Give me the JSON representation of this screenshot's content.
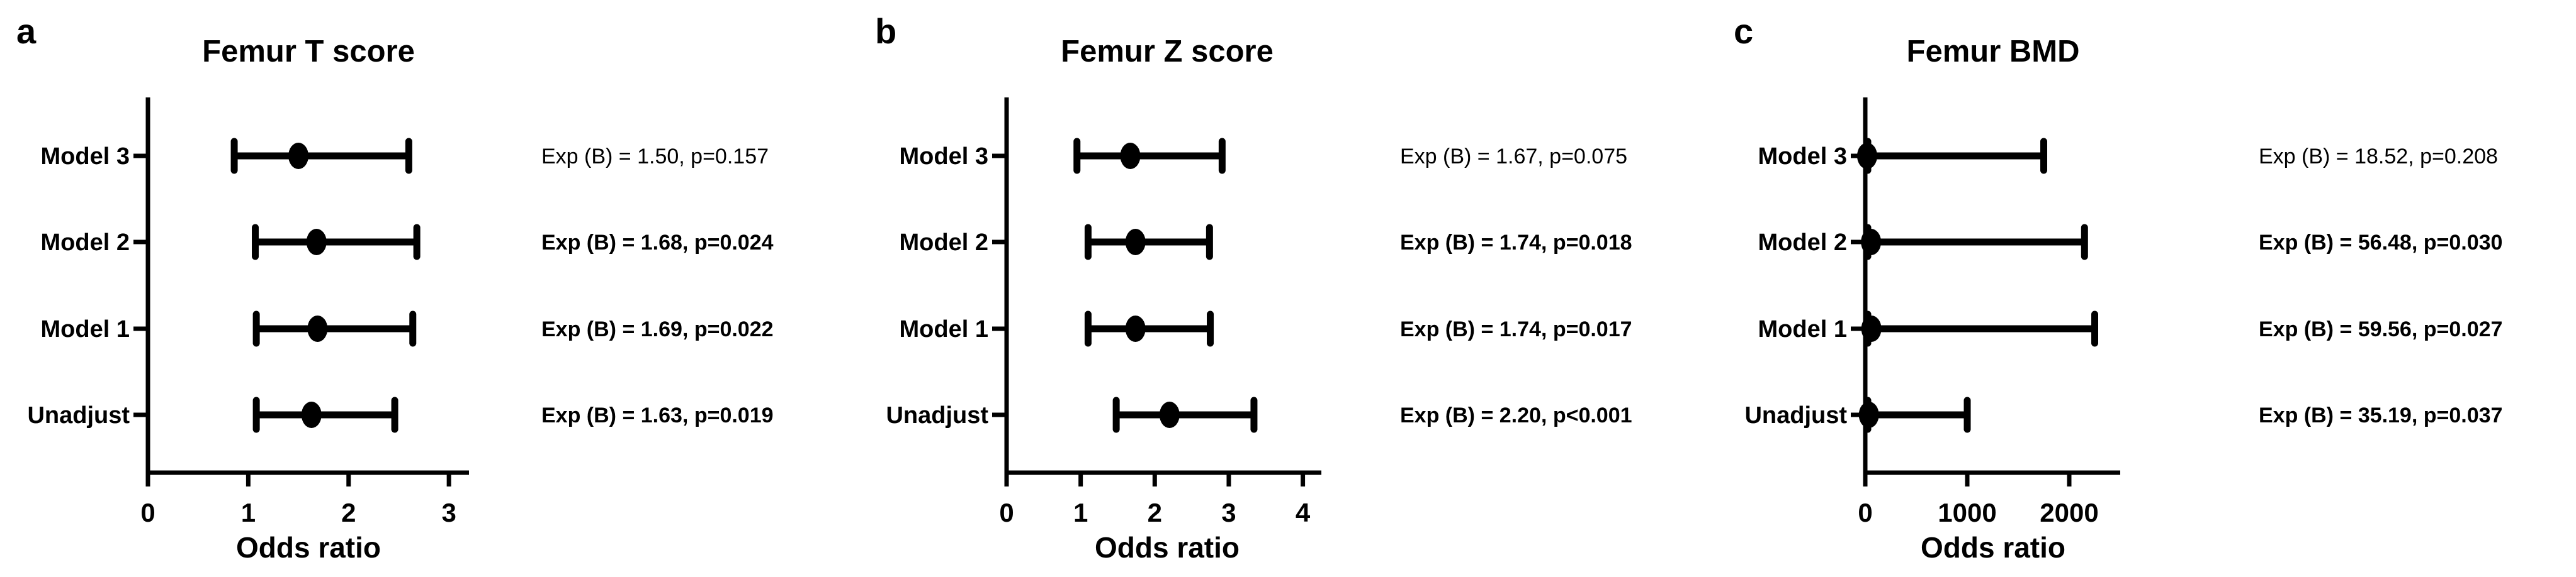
{
  "figure": {
    "type": "forest-plot-figure",
    "background": "#ffffff",
    "ink_color": "#000000",
    "x_axis_label": "Odds ratio",
    "row_labels": [
      "Model 3",
      "Model 2",
      "Model 1",
      "Unadjust"
    ]
  },
  "chart_data": [
    {
      "type": "forest",
      "letter": "a",
      "title": "Femur T score",
      "xlabel": "Odds ratio",
      "categories": [
        "Model 3",
        "Model 2",
        "Model 1",
        "Unadjust"
      ],
      "odds_ratio": [
        1.5,
        1.68,
        1.69,
        1.63
      ],
      "ci_low": [
        0.86,
        1.07,
        1.08,
        1.08
      ],
      "ci_high": [
        2.6,
        2.68,
        2.64,
        2.46
      ],
      "p_values": [
        "0.157",
        "0.024",
        "0.022",
        "0.019"
      ],
      "x_ticks": [
        0,
        1,
        2,
        3
      ],
      "xlim": [
        0,
        3.2
      ],
      "annotations": [
        {
          "text": "Exp (B) = 1.50, p=0.157",
          "bold": false
        },
        {
          "text": "Exp (B) = 1.68, p=0.024",
          "bold": true
        },
        {
          "text": "Exp (B) = 1.69, p=0.022",
          "bold": true
        },
        {
          "text": "Exp (B) = 1.63, p=0.019",
          "bold": true
        }
      ]
    },
    {
      "type": "forest",
      "letter": "b",
      "title": "Femur Z score",
      "xlabel": "Odds ratio",
      "categories": [
        "Model 3",
        "Model 2",
        "Model 1",
        "Unadjust"
      ],
      "odds_ratio": [
        1.67,
        1.74,
        1.74,
        2.2
      ],
      "ci_low": [
        0.95,
        1.1,
        1.1,
        1.48
      ],
      "ci_high": [
        2.91,
        2.74,
        2.75,
        3.34
      ],
      "p_values": [
        "0.075",
        "0.018",
        "0.017",
        "<0.001"
      ],
      "x_ticks": [
        0,
        1,
        2,
        3,
        4
      ],
      "xlim": [
        0,
        4.25
      ],
      "annotations": [
        {
          "text": "Exp (B) = 1.67, p=0.075",
          "bold": false
        },
        {
          "text": "Exp (B) = 1.74, p=0.018",
          "bold": true
        },
        {
          "text": "Exp (B) = 1.74, p=0.017",
          "bold": true
        },
        {
          "text": "Exp (B) = 2.20, p<0.001",
          "bold": true
        }
      ]
    },
    {
      "type": "forest",
      "letter": "c",
      "title": "Femur BMD",
      "xlabel": "Odds ratio",
      "categories": [
        "Model 3",
        "Model 2",
        "Model 1",
        "Unadjust"
      ],
      "odds_ratio": [
        18.52,
        56.48,
        59.56,
        35.19
      ],
      "ci_low": [
        0,
        0,
        0,
        0
      ],
      "ci_high": [
        1750,
        2150,
        2250,
        1000
      ],
      "p_values": [
        "0.208",
        "0.030",
        "0.027",
        "0.037"
      ],
      "x_ticks": [
        0,
        1000,
        2000
      ],
      "xlim": [
        0,
        2500
      ],
      "annotations": [
        {
          "text": "Exp (B) = 18.52, p=0.208",
          "bold": false
        },
        {
          "text": "Exp (B) = 56.48, p=0.030",
          "bold": true
        },
        {
          "text": "Exp (B) = 59.56, p=0.027",
          "bold": true
        },
        {
          "text": "Exp (B) = 35.19, p=0.037",
          "bold": true
        }
      ]
    }
  ]
}
